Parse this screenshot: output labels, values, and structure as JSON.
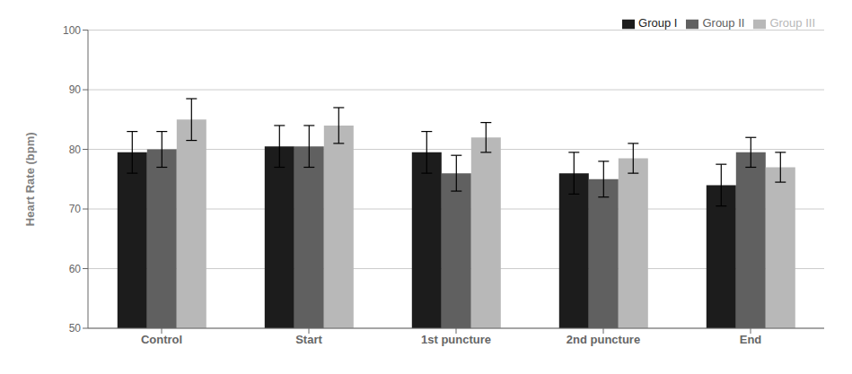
{
  "chart_data": {
    "type": "bar",
    "categories": [
      "Control",
      "Start",
      "1st puncture",
      "2nd puncture",
      "End"
    ],
    "series": [
      {
        "name": "Group I",
        "color": "#1c1c1c",
        "values": [
          79.5,
          80.5,
          79.5,
          76.0,
          74.0
        ],
        "errors": [
          3.5,
          3.5,
          3.5,
          3.5,
          3.5
        ]
      },
      {
        "name": "Group II",
        "color": "#606060",
        "values": [
          80.0,
          80.5,
          76.0,
          75.0,
          79.5
        ],
        "errors": [
          3.0,
          3.5,
          3.0,
          3.0,
          2.5
        ]
      },
      {
        "name": "Group III",
        "color": "#b8b8b8",
        "values": [
          85.0,
          84.0,
          82.0,
          78.5,
          77.0
        ],
        "errors": [
          3.5,
          3.0,
          2.5,
          2.5,
          2.5
        ]
      }
    ],
    "ylabel": "Heart Rate (bpm)",
    "ylim": [
      50,
      100
    ],
    "yticks": [
      50,
      60,
      70,
      80,
      90,
      100
    ],
    "grid": true,
    "legend": "upper right"
  }
}
